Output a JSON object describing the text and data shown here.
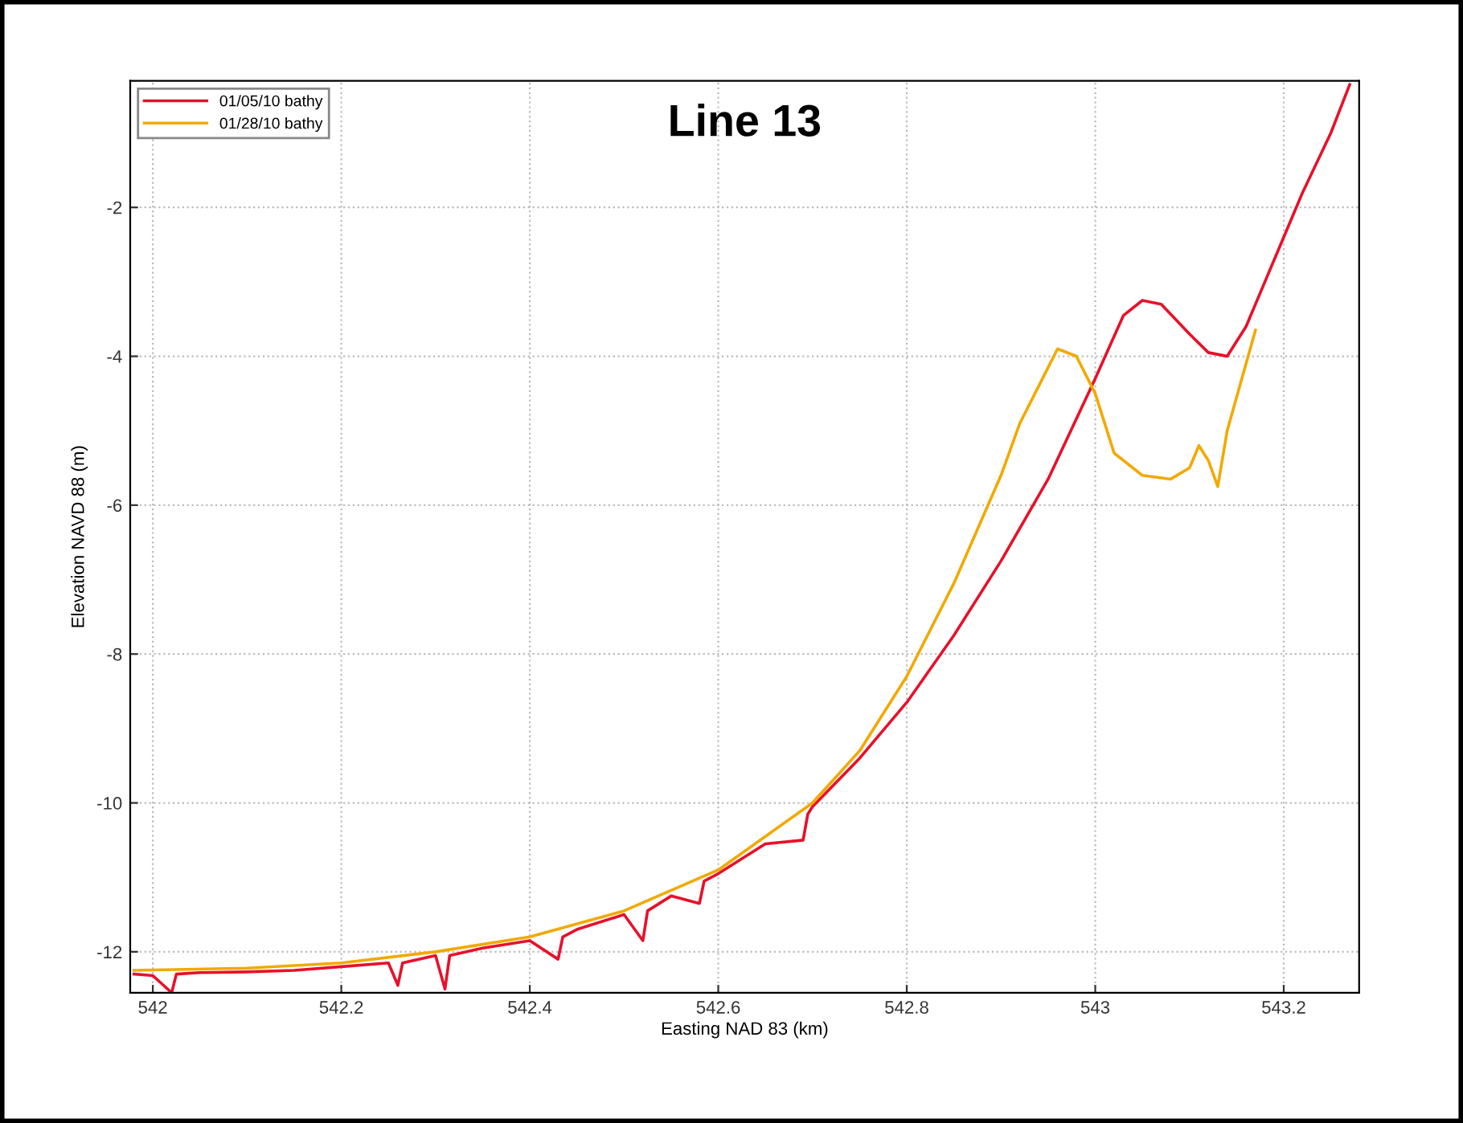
{
  "chart_data": {
    "type": "line",
    "title": "Line 13",
    "xlabel": "Easting NAD 83 (km)",
    "ylabel": "Elevation NAVD 88 (m)",
    "xlim": [
      541.976,
      543.28
    ],
    "xticks": [
      542,
      542.2,
      542.4,
      542.6,
      542.8,
      543,
      543.2
    ],
    "ylim": [
      -12.55,
      -0.3
    ],
    "yticks": [
      -12,
      -10,
      -8,
      -6,
      -4,
      -2
    ],
    "grid": true,
    "legend": "top left",
    "line_style": "solid",
    "marker": "none",
    "series": [
      {
        "name": "01/05/10 bathy",
        "color": "#e8102a",
        "x": [
          541.98,
          542.0,
          542.02,
          542.025,
          542.05,
          542.1,
          542.15,
          542.2,
          542.25,
          542.26,
          542.265,
          542.3,
          542.31,
          542.315,
          542.35,
          542.4,
          542.43,
          542.435,
          542.45,
          542.5,
          542.52,
          542.525,
          542.55,
          542.58,
          542.585,
          542.6,
          542.65,
          542.69,
          542.695,
          542.7,
          542.75,
          542.8,
          542.85,
          542.9,
          542.95,
          543.0,
          543.03,
          543.05,
          543.07,
          543.1,
          543.12,
          543.14,
          543.16,
          543.18,
          543.2,
          543.22,
          543.25,
          543.27
        ],
        "values": [
          -12.3,
          -12.32,
          -12.55,
          -12.3,
          -12.28,
          -12.27,
          -12.25,
          -12.2,
          -12.15,
          -12.45,
          -12.15,
          -12.05,
          -12.5,
          -12.05,
          -11.95,
          -11.85,
          -12.1,
          -11.8,
          -11.7,
          -11.5,
          -11.85,
          -11.45,
          -11.25,
          -11.35,
          -11.05,
          -10.95,
          -10.55,
          -10.5,
          -10.15,
          -10.05,
          -9.4,
          -8.65,
          -7.75,
          -6.75,
          -5.65,
          -4.3,
          -3.45,
          -3.25,
          -3.3,
          -3.7,
          -3.95,
          -4.0,
          -3.6,
          -3.0,
          -2.4,
          -1.8,
          -1.0,
          -0.35
        ]
      },
      {
        "name": "01/28/10 bathy",
        "color": "#f2a900",
        "x": [
          541.98,
          542.1,
          542.2,
          542.3,
          542.4,
          542.5,
          542.6,
          542.7,
          542.75,
          542.8,
          542.85,
          542.9,
          542.92,
          542.94,
          542.96,
          542.98,
          543.0,
          543.02,
          543.05,
          543.08,
          543.1,
          543.11,
          543.12,
          543.13,
          543.14,
          543.17
        ],
        "values": [
          -12.25,
          -12.22,
          -12.15,
          -12.0,
          -11.8,
          -11.45,
          -10.9,
          -10.0,
          -9.3,
          -8.3,
          -7.05,
          -5.6,
          -4.9,
          -4.4,
          -3.9,
          -4.0,
          -4.5,
          -5.3,
          -5.6,
          -5.65,
          -5.5,
          -5.2,
          -5.4,
          -5.75,
          -5.0,
          -3.65
        ]
      }
    ]
  }
}
